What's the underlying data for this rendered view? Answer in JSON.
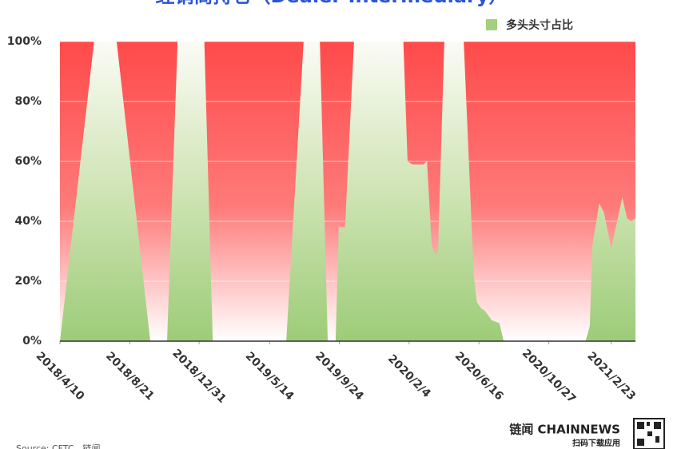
{
  "chart_data": {
    "type": "area",
    "title": "经销商持仓（Dealer Intermediary）",
    "source": "Source: CFTC，链闻",
    "brand": "链闻 CHAINNEWS",
    "brand_sub": "扫码下载应用",
    "xlim": [
      "2018/4/10",
      "2021/4/10"
    ],
    "xticks": [
      "2018/4/10",
      "2018/8/21",
      "2018/12/31",
      "2019/5/14",
      "2019/9/24",
      "2020/2/4",
      "2020/6/16",
      "2020/10/27",
      "2021/2/23"
    ],
    "ylim": [
      0,
      100
    ],
    "yticks": [
      {
        "value": 0,
        "label": "0%"
      },
      {
        "value": 20,
        "label": "20%"
      },
      {
        "value": 40,
        "label": "40%"
      },
      {
        "value": 60,
        "label": "60%"
      },
      {
        "value": 80,
        "label": "80%"
      },
      {
        "value": 100,
        "label": "100%"
      }
    ],
    "grid": true,
    "legend": "upper right",
    "x": [
      "2018/4/10",
      "2018/6/14",
      "2018/7/27",
      "2018/9/29",
      "2018/10/31",
      "2018/11/20",
      "2019/1/10",
      "2019/1/26",
      "2019/6/15",
      "2019/7/18",
      "2019/8/18",
      "2019/9/2",
      "2019/9/17",
      "2019/9/23",
      "2019/10/5",
      "2019/10/22",
      "2020/1/24",
      "2020/2/1",
      "2020/2/10",
      "2020/3/2",
      "2020/3/9",
      "2020/3/18",
      "2020/3/25",
      "2020/3/30",
      "2020/4/11",
      "2020/5/18",
      "2020/6/6",
      "2020/6/12",
      "2020/6/20",
      "2020/6/28",
      "2020/7/10",
      "2020/7/25",
      "2020/8/2",
      "2021/1/5",
      "2021/1/13",
      "2021/1/18",
      "2021/1/31",
      "2021/2/9",
      "2021/2/23",
      "2021/3/6",
      "2021/3/16",
      "2021/3/25",
      "2021/4/2",
      "2021/4/10"
    ],
    "series": [
      {
        "name": "多头头寸占比",
        "color": "#a3cf7f",
        "values": [
          0,
          100,
          100,
          0,
          0,
          100,
          100,
          0,
          0,
          100,
          100,
          0,
          0,
          38,
          38,
          100,
          100,
          60,
          59,
          59,
          60,
          32,
          29,
          30,
          100,
          100,
          22,
          13,
          11,
          10,
          7,
          6,
          0,
          0,
          5,
          32,
          46,
          43,
          31,
          40,
          48,
          41,
          40,
          41
        ]
      }
    ]
  }
}
